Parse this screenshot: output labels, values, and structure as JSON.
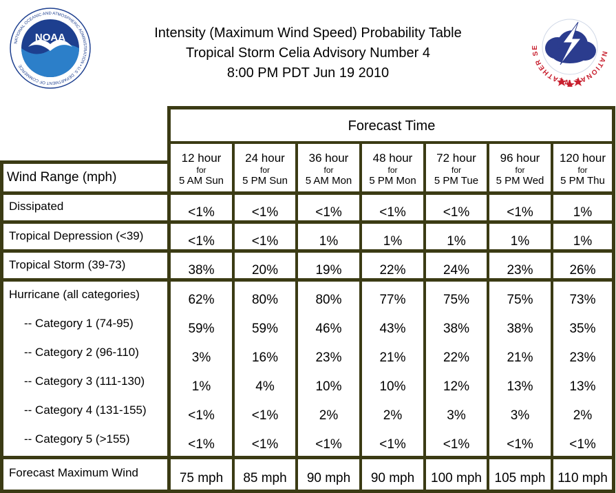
{
  "header": {
    "title_line1": "Intensity (Maximum Wind Speed) Probability Table",
    "title_line2": "Tropical Storm Celia Advisory Number 4",
    "title_line3": "8:00 PM PDT Jun 19 2010"
  },
  "logos": {
    "noaa_text": "NOAA",
    "noaa_ring_text": "NATIONAL OCEANIC AND ATMOSPHERIC ADMINISTRATION • U.S. DEPARTMENT OF COMMERCE",
    "nws_ring_text": "NATIONAL WEATHER SERVICE"
  },
  "table": {
    "forecast_time_label": "Forecast Time",
    "wind_range_label": "Wind Range (mph)",
    "columns": [
      {
        "hour": "12 hour",
        "for": "for",
        "when": "5 AM Sun"
      },
      {
        "hour": "24 hour",
        "for": "for",
        "when": "5 PM Sun"
      },
      {
        "hour": "36 hour",
        "for": "for",
        "when": "5 AM Mon"
      },
      {
        "hour": "48 hour",
        "for": "for",
        "when": "5 PM Mon"
      },
      {
        "hour": "72 hour",
        "for": "for",
        "when": "5 PM Tue"
      },
      {
        "hour": "96 hour",
        "for": "for",
        "when": "5 PM Wed"
      },
      {
        "hour": "120 hour",
        "for": "for",
        "when": "5 PM Thu"
      }
    ],
    "rows": [
      {
        "label": "Dissipated",
        "values": [
          "<1%",
          "<1%",
          "<1%",
          "<1%",
          "<1%",
          "<1%",
          "1%"
        ]
      },
      {
        "label": "Tropical Depression (<39)",
        "values": [
          "<1%",
          "<1%",
          "1%",
          "1%",
          "1%",
          "1%",
          "1%"
        ]
      },
      {
        "label": "Tropical Storm (39-73)",
        "values": [
          "38%",
          "20%",
          "19%",
          "22%",
          "24%",
          "23%",
          "26%"
        ]
      },
      {
        "label": "Hurricane (all categories)",
        "values": [
          "62%",
          "80%",
          "80%",
          "77%",
          "75%",
          "75%",
          "73%"
        ]
      },
      {
        "label": "-- Category 1 (74-95)",
        "values": [
          "59%",
          "59%",
          "46%",
          "43%",
          "38%",
          "38%",
          "35%"
        ]
      },
      {
        "label": "-- Category 2 (96-110)",
        "values": [
          "3%",
          "16%",
          "23%",
          "21%",
          "22%",
          "21%",
          "23%"
        ]
      },
      {
        "label": "-- Category 3 (111-130)",
        "values": [
          "1%",
          "4%",
          "10%",
          "10%",
          "12%",
          "13%",
          "13%"
        ]
      },
      {
        "label": "-- Category 4 (131-155)",
        "values": [
          "<1%",
          "<1%",
          "2%",
          "2%",
          "3%",
          "3%",
          "2%"
        ]
      },
      {
        "label": "-- Category 5 (>155)",
        "values": [
          "<1%",
          "<1%",
          "<1%",
          "<1%",
          "<1%",
          "<1%",
          "<1%"
        ]
      },
      {
        "label": "Forecast Maximum Wind",
        "values": [
          "75 mph",
          "85 mph",
          "90 mph",
          "90 mph",
          "100 mph",
          "105 mph",
          "110 mph"
        ]
      }
    ]
  }
}
